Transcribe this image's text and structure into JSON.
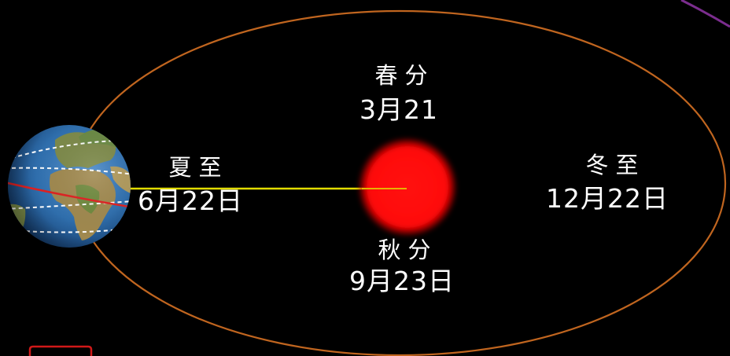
{
  "labels": {
    "spring_equinox": {
      "name": "春分",
      "date": "3月21"
    },
    "summer_solstice": {
      "name": "夏至",
      "date": "6月22日"
    },
    "autumn_equinox": {
      "name": "秋分",
      "date": "9月23日"
    },
    "winter_solstice": {
      "name": "冬至",
      "date": "12月22日"
    }
  },
  "colors": {
    "background": "#000000",
    "orbit": "#c0651f",
    "sun": "#ff0000",
    "sunlight_line": "#e2dc00",
    "label_text": "#ffffff",
    "earth_ocean": "#2f6fae",
    "tropic_line": "#e02020",
    "corner_arc": "#7b2d8e",
    "corner_bracket": "#d01818"
  },
  "icons": {
    "earth": "earth-globe-icon",
    "sun": "sun-icon"
  }
}
